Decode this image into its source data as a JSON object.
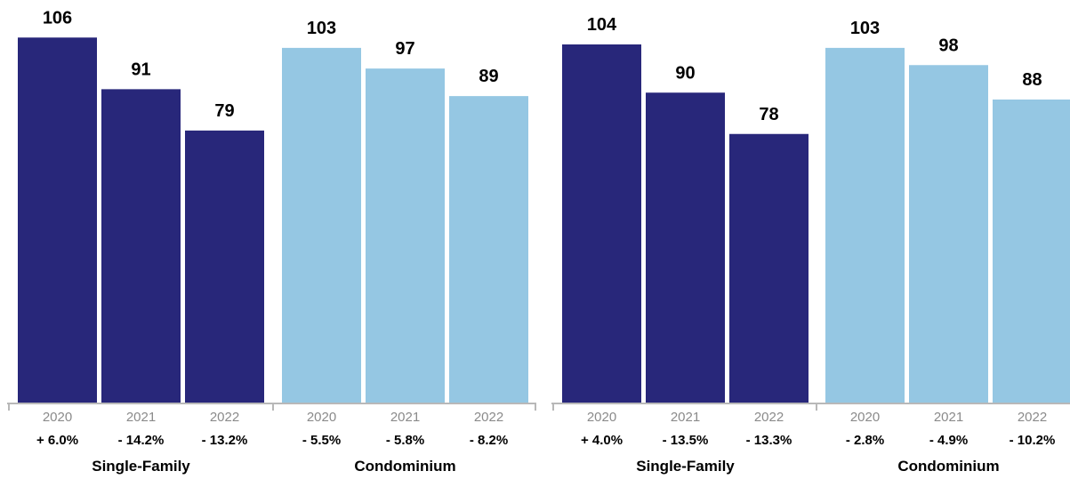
{
  "chart_data": [
    {
      "type": "bar",
      "colors": {
        "Single-Family": "#28277a",
        "Condominium": "#95c7e3"
      },
      "groups": [
        {
          "name": "Single-Family",
          "categories": [
            "2020",
            "2021",
            "2022"
          ],
          "values": [
            106,
            91,
            79
          ],
          "changes": [
            "+ 6.0%",
            "- 14.2%",
            "- 13.2%"
          ]
        },
        {
          "name": "Condominium",
          "categories": [
            "2020",
            "2021",
            "2022"
          ],
          "values": [
            103,
            97,
            89
          ],
          "changes": [
            "- 5.5%",
            "- 5.8%",
            "- 8.2%"
          ]
        }
      ],
      "ylim": [
        0,
        110
      ],
      "grid": false
    },
    {
      "type": "bar",
      "colors": {
        "Single-Family": "#28277a",
        "Condominium": "#95c7e3"
      },
      "groups": [
        {
          "name": "Single-Family",
          "categories": [
            "2020",
            "2021",
            "2022"
          ],
          "values": [
            104,
            90,
            78
          ],
          "changes": [
            "+ 4.0%",
            "- 13.5%",
            "- 13.3%"
          ]
        },
        {
          "name": "Condominium",
          "categories": [
            "2020",
            "2021",
            "2022"
          ],
          "values": [
            103,
            98,
            88
          ],
          "changes": [
            "- 2.8%",
            "- 4.9%",
            "- 10.2%"
          ]
        }
      ],
      "ylim": [
        0,
        110
      ],
      "grid": false
    }
  ]
}
